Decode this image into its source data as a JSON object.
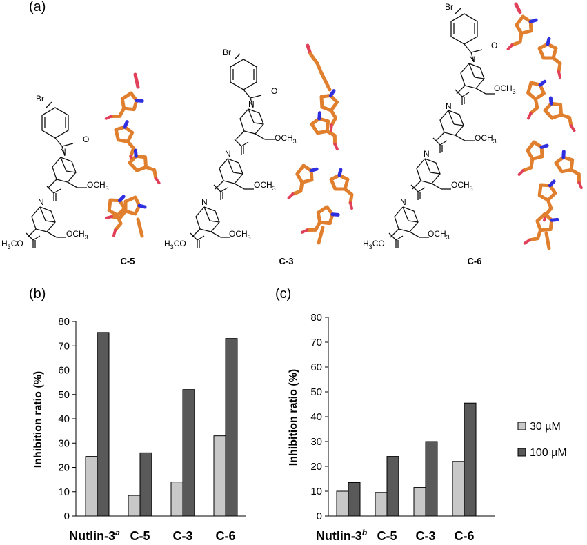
{
  "panel_labels": {
    "a": "(a)",
    "b": "(b)",
    "c": "(c)"
  },
  "structures": {
    "atoms": {
      "br": "Br",
      "n": "N",
      "o": "O",
      "och3": "OCH",
      "och3_sub": "3",
      "h3co": "H",
      "h3co_sub": "3",
      "h3co_rest": "CO"
    },
    "compounds": [
      "C-5",
      "C-3",
      "C-6"
    ]
  },
  "colors": {
    "light_bar": "#c8c8c8",
    "dark_bar": "#595959",
    "stick_orange": "#e07f2e",
    "stick_blue": "#2f2fe0",
    "stick_red": "#e0405a"
  },
  "chart_data": [
    {
      "type": "bar",
      "panel": "(b)",
      "categories": [
        "Nutlin-3",
        "C-5",
        "C-3",
        "C-6"
      ],
      "category_superscripts": [
        "a",
        "",
        "",
        ""
      ],
      "series": [
        {
          "name": "30 µM",
          "values": [
            24.5,
            8.5,
            14,
            33
          ]
        },
        {
          "name": "100 µM",
          "values": [
            75.5,
            26,
            52,
            73
          ]
        }
      ],
      "ylabel": "Inhibition ratio (%)",
      "ylim": [
        0,
        80
      ],
      "yticks": [
        "0",
        "10",
        "20",
        "30",
        "40",
        "50",
        "60",
        "70",
        "80"
      ],
      "grid": false
    },
    {
      "type": "bar",
      "panel": "(c)",
      "categories": [
        "Nutlin-3",
        "C-5",
        "C-3",
        "C-6"
      ],
      "category_superscripts": [
        "b",
        "",
        "",
        ""
      ],
      "series": [
        {
          "name": "30 µM",
          "values": [
            10,
            9.5,
            11.5,
            22
          ]
        },
        {
          "name": "100 µM",
          "values": [
            13.5,
            24,
            30,
            45.5
          ]
        }
      ],
      "ylabel": "Inhibition ratio (%)",
      "ylim": [
        0,
        80
      ],
      "yticks": [
        "0",
        "10",
        "20",
        "30",
        "40",
        "50",
        "60",
        "70",
        "80"
      ],
      "grid": false,
      "legend_position": "right"
    }
  ],
  "legend": {
    "items": [
      "30 µM",
      "100 µM"
    ]
  }
}
